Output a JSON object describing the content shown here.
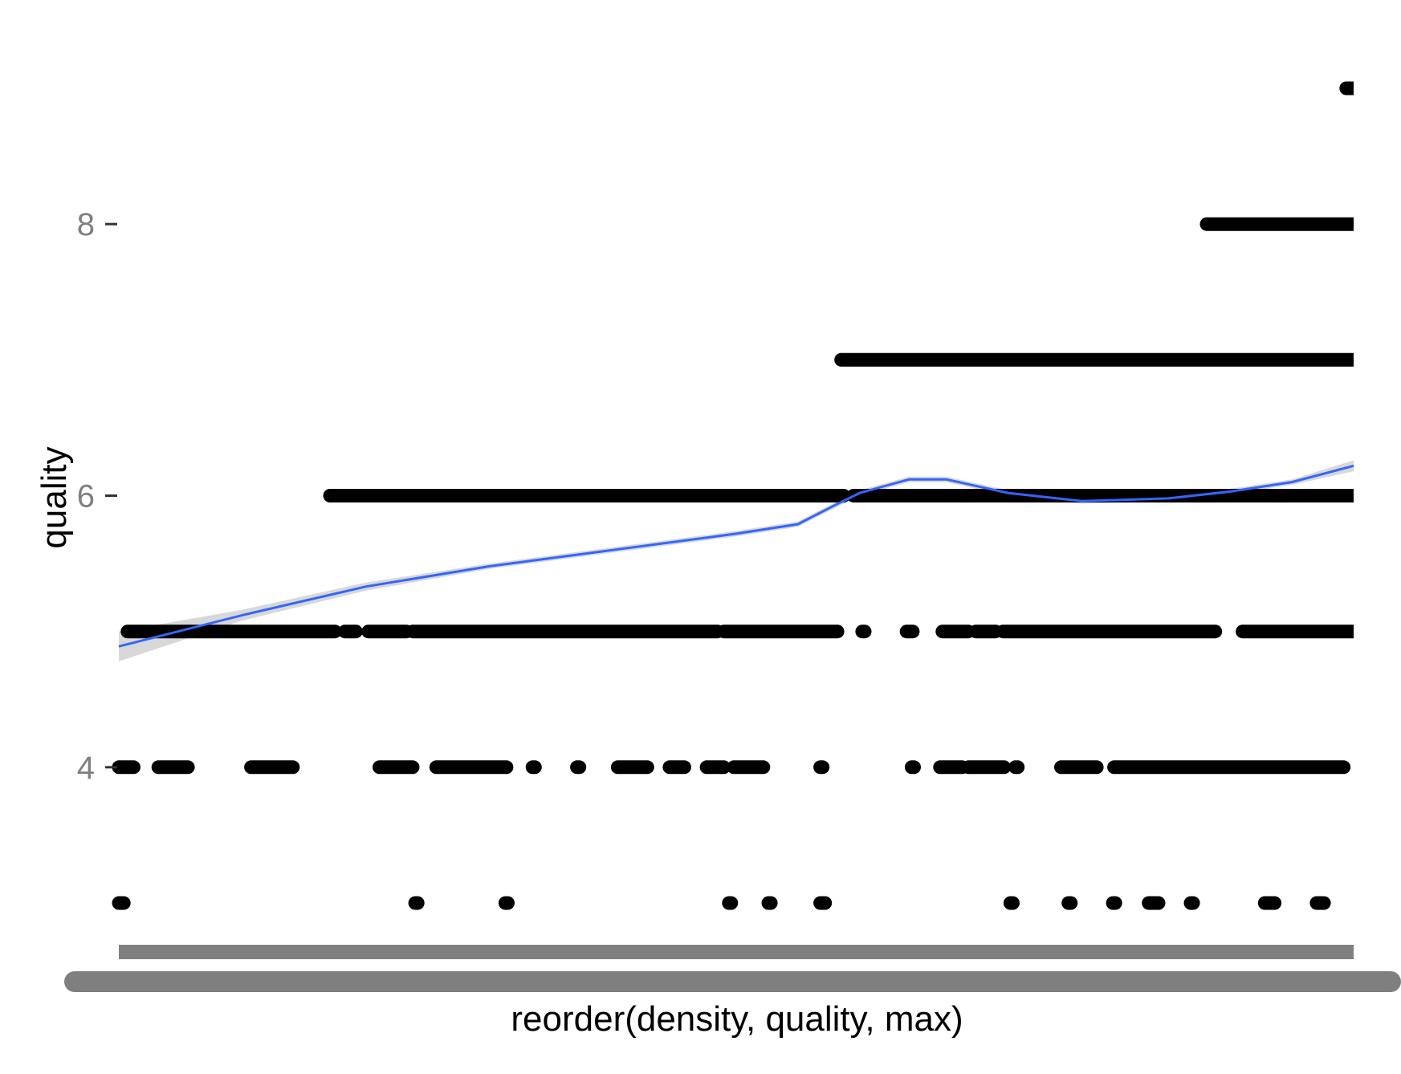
{
  "chart_data": {
    "type": "scatter",
    "title": "",
    "xlabel": "reorder(density, quality, max)",
    "ylabel": "quality",
    "y_ticks": [
      4,
      6,
      8
    ],
    "ylim": [
      2.75,
      9.25
    ],
    "x_axis_tick_labels": "overplotted category labels rendered as a solid grey band",
    "grid": false,
    "legend": "none",
    "colors": {
      "points": "#000000",
      "smooth_line": "#3366FF",
      "confidence_band": "#BEBEBE",
      "tick_labels": "#7F7F7F",
      "axis_titles": "#000000"
    },
    "series": [
      {
        "quality": 3,
        "x_fraction_runs": [
          [
            0.0,
            0.004
          ],
          [
            0.24,
            0.242
          ],
          [
            0.313,
            0.315
          ],
          [
            0.494,
            0.496
          ],
          [
            0.526,
            0.528
          ],
          [
            0.568,
            0.572
          ],
          [
            0.722,
            0.724
          ],
          [
            0.769,
            0.771
          ],
          [
            0.805,
            0.807
          ],
          [
            0.834,
            0.842
          ],
          [
            0.868,
            0.87
          ],
          [
            0.928,
            0.936
          ],
          [
            0.97,
            0.976
          ]
        ]
      },
      {
        "quality": 4,
        "x_fraction_runs": [
          [
            0.0,
            0.012
          ],
          [
            0.032,
            0.056
          ],
          [
            0.107,
            0.141
          ],
          [
            0.211,
            0.238
          ],
          [
            0.257,
            0.314
          ],
          [
            0.335,
            0.337
          ],
          [
            0.371,
            0.373
          ],
          [
            0.404,
            0.428
          ],
          [
            0.446,
            0.458
          ],
          [
            0.476,
            0.49
          ],
          [
            0.498,
            0.522
          ],
          [
            0.568,
            0.57
          ],
          [
            0.642,
            0.644
          ],
          [
            0.665,
            0.683
          ],
          [
            0.688,
            0.717
          ],
          [
            0.726,
            0.728
          ],
          [
            0.763,
            0.792
          ],
          [
            0.806,
            0.992
          ]
        ]
      },
      {
        "quality": 5,
        "x_fraction_runs": [
          [
            0.007,
            0.175
          ],
          [
            0.183,
            0.192
          ],
          [
            0.202,
            0.233
          ],
          [
            0.238,
            0.485
          ],
          [
            0.49,
            0.582
          ],
          [
            0.602,
            0.604
          ],
          [
            0.638,
            0.643
          ],
          [
            0.667,
            0.688
          ],
          [
            0.694,
            0.71
          ],
          [
            0.716,
            0.888
          ],
          [
            0.91,
            1.0
          ]
        ]
      },
      {
        "quality": 6,
        "x_fraction_runs": [
          [
            0.171,
            0.587
          ],
          [
            0.595,
            1.0
          ]
        ]
      },
      {
        "quality": 7,
        "x_fraction_runs": [
          [
            0.585,
            1.0
          ]
        ]
      },
      {
        "quality": 8,
        "x_fraction_runs": [
          [
            0.881,
            1.0
          ]
        ]
      },
      {
        "quality": 9,
        "x_fraction_runs": [
          [
            0.994,
            1.0
          ]
        ]
      }
    ],
    "smooth": {
      "method": "loess",
      "x_fraction": [
        0.0,
        0.1,
        0.2,
        0.3,
        0.4,
        0.5,
        0.55,
        0.58,
        0.6,
        0.64,
        0.67,
        0.72,
        0.78,
        0.85,
        0.9,
        0.95,
        1.0
      ],
      "fit": [
        4.89,
        5.12,
        5.33,
        5.48,
        5.6,
        5.72,
        5.79,
        5.93,
        6.02,
        6.12,
        6.12,
        6.02,
        5.96,
        5.98,
        6.03,
        6.1,
        6.22
      ],
      "se_low": [
        4.78,
        5.08,
        5.3,
        5.46,
        5.58,
        5.7,
        5.77,
        5.91,
        6.0,
        6.1,
        6.1,
        6.0,
        5.94,
        5.96,
        6.01,
        6.08,
        6.18
      ],
      "se_high": [
        5.0,
        5.16,
        5.36,
        5.5,
        5.62,
        5.74,
        5.81,
        5.95,
        6.04,
        6.14,
        6.14,
        6.04,
        5.98,
        6.0,
        6.05,
        6.12,
        6.26
      ]
    }
  }
}
